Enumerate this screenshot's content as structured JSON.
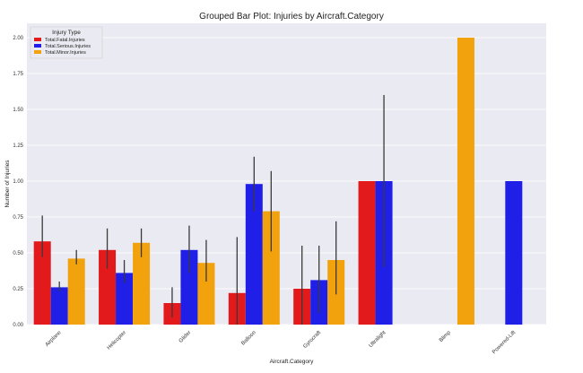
{
  "chart_data": {
    "type": "bar",
    "title": "Grouped Bar Plot: Injuries by Aircraft.Category",
    "xlabel": "Aircraft.Category",
    "ylabel": "Number of Injuries",
    "categories": [
      "Airplane",
      "Helicopter",
      "Glider",
      "Balloon",
      "Gyrocraft",
      "Ultralight",
      "Blimp",
      "Powered-Lift"
    ],
    "ylim": [
      0,
      2.1
    ],
    "yticks": [
      "0.00",
      "0.25",
      "0.50",
      "0.75",
      "1.00",
      "1.25",
      "1.50",
      "1.75",
      "2.00"
    ],
    "grid": true,
    "legend": {
      "title": "Injury Type",
      "placement": "top-left"
    },
    "series": [
      {
        "name": "Total.Fatal.Injuries",
        "color": "#e31a1c",
        "values": [
          0.58,
          0.52,
          0.15,
          0.22,
          0.25,
          1.0,
          null,
          null
        ],
        "error_low": [
          0.47,
          0.39,
          0.05,
          0.0,
          0.0,
          1.0,
          null,
          null
        ],
        "error_high": [
          0.76,
          0.67,
          0.26,
          0.61,
          0.55,
          1.0,
          null,
          null
        ]
      },
      {
        "name": "Total.Serious.Injuries",
        "color": "#1f1fe8",
        "values": [
          0.26,
          0.36,
          0.52,
          0.98,
          0.31,
          1.0,
          null,
          1.0
        ],
        "error_low": [
          0.23,
          0.29,
          0.36,
          0.79,
          0.08,
          0.4,
          null,
          1.0
        ],
        "error_high": [
          0.3,
          0.45,
          0.69,
          1.17,
          0.55,
          1.6,
          null,
          1.0
        ]
      },
      {
        "name": "Total.Minor.Injuries",
        "color": "#f2a20d",
        "values": [
          0.46,
          0.57,
          0.43,
          0.79,
          0.45,
          null,
          2.0,
          null
        ],
        "error_low": [
          0.42,
          0.47,
          0.3,
          0.51,
          0.21,
          null,
          2.0,
          null
        ],
        "error_high": [
          0.52,
          0.67,
          0.59,
          1.07,
          0.72,
          null,
          2.0,
          null
        ]
      }
    ]
  }
}
